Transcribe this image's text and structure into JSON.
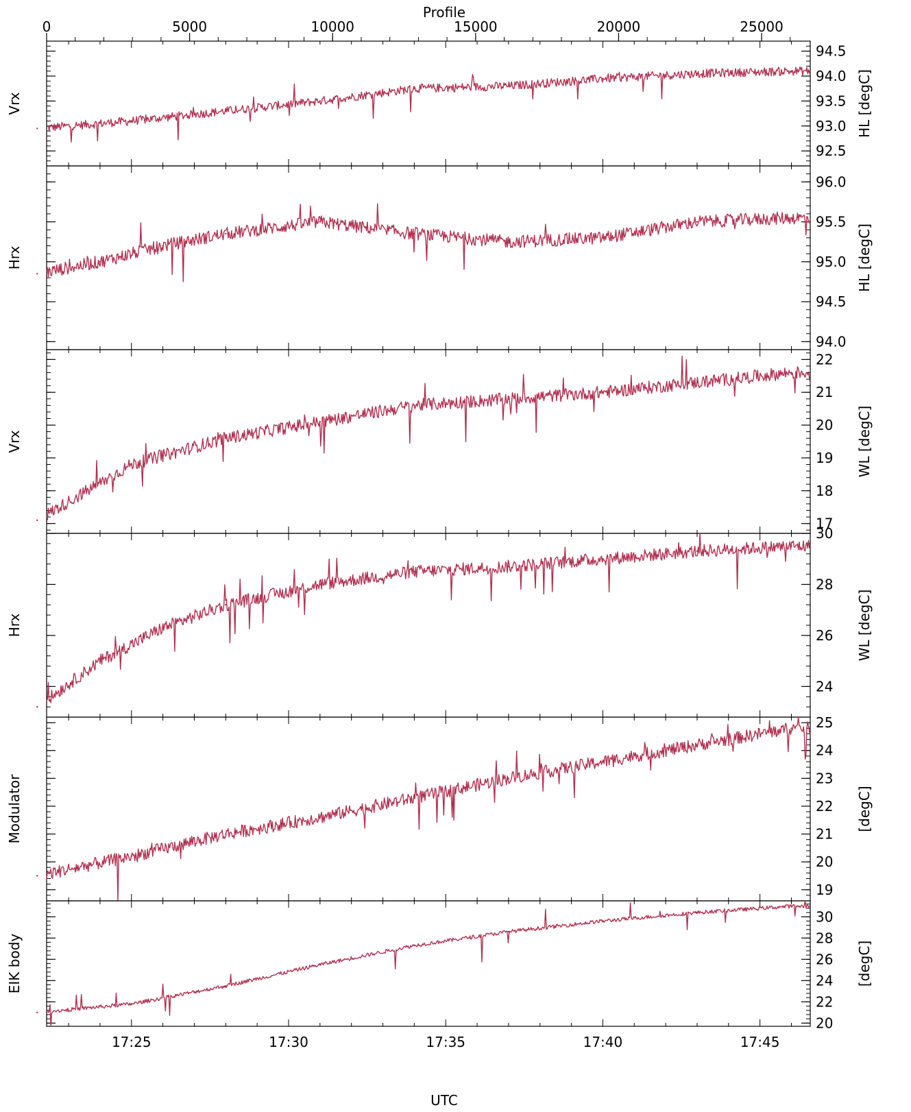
{
  "figure": {
    "top_axis_title": "Profile",
    "bottom_axis_title": "UTC",
    "line_color": "#B03050",
    "top_ticks": [
      "0",
      "5000",
      "10000",
      "15000",
      "20000",
      "25000"
    ],
    "top_range": [
      0,
      26700
    ],
    "bottom_ticks": [
      "17:25",
      "17:30",
      "17:35",
      "17:40",
      "17:45"
    ],
    "time_range_minutes": [
      1042.3,
      1066.6
    ]
  },
  "chart_data": [
    {
      "type": "line",
      "left_label": "Vrx",
      "right_label": "HL  [degC]",
      "ylim": [
        92.2,
        94.7
      ],
      "yticks": [
        "92.5",
        "93.0",
        "93.5",
        "94.0",
        "94.5"
      ],
      "series": [
        {
          "x": [
            "17:22",
            "17:25",
            "17:28",
            "17:31",
            "17:34",
            "17:37",
            "17:40",
            "17:43",
            "17:46"
          ],
          "values": [
            92.95,
            93.1,
            93.3,
            93.5,
            93.75,
            93.8,
            93.95,
            94.05,
            94.1
          ]
        }
      ]
    },
    {
      "type": "line",
      "left_label": "Hrx",
      "right_label": "HL  [degC]",
      "ylim": [
        93.9,
        96.2
      ],
      "yticks": [
        "94.0",
        "94.5",
        "95.0",
        "95.5",
        "96.0"
      ],
      "series": [
        {
          "x": [
            "17:22",
            "17:24",
            "17:26",
            "17:28",
            "17:31",
            "17:34",
            "17:37",
            "17:40",
            "17:43",
            "17:46"
          ],
          "values": [
            94.85,
            95.0,
            95.2,
            95.35,
            95.5,
            95.35,
            95.25,
            95.3,
            95.5,
            95.55
          ]
        }
      ]
    },
    {
      "type": "line",
      "left_label": "Vrx",
      "right_label": "WL  [degC]",
      "ylim": [
        16.7,
        22.3
      ],
      "yticks": [
        "17",
        "18",
        "19",
        "20",
        "21",
        "22"
      ],
      "series": [
        {
          "x": [
            "17:22",
            "17:25",
            "17:28",
            "17:31",
            "17:34",
            "17:37",
            "17:40",
            "17:43",
            "17:46"
          ],
          "values": [
            17.1,
            18.8,
            19.6,
            20.1,
            20.6,
            20.8,
            21.0,
            21.3,
            21.6
          ]
        }
      ]
    },
    {
      "type": "line",
      "left_label": "Hrx",
      "right_label": "WL  [degC]",
      "ylim": [
        22.8,
        30.0
      ],
      "yticks": [
        "24",
        "26",
        "28",
        "30"
      ],
      "series": [
        {
          "x": [
            "17:22",
            "17:24",
            "17:26",
            "17:28",
            "17:31",
            "17:34",
            "17:37",
            "17:40",
            "17:43",
            "17:46"
          ],
          "values": [
            23.2,
            25.0,
            26.3,
            27.2,
            28.0,
            28.5,
            28.7,
            29.0,
            29.3,
            29.5
          ]
        }
      ]
    },
    {
      "type": "line",
      "left_label": "Modulator",
      "right_label": "[degC]",
      "ylim": [
        18.6,
        25.2
      ],
      "yticks": [
        "19",
        "20",
        "21",
        "22",
        "23",
        "24",
        "25"
      ],
      "series": [
        {
          "x": [
            "17:22",
            "17:25",
            "17:28",
            "17:31",
            "17:34",
            "17:37",
            "17:40",
            "17:43",
            "17:46"
          ],
          "values": [
            19.5,
            20.2,
            21.0,
            21.6,
            22.3,
            23.0,
            23.6,
            24.2,
            24.8
          ]
        }
      ]
    },
    {
      "type": "line",
      "left_label": "EIK body",
      "right_label": "[degC]",
      "ylim": [
        19.7,
        31.5
      ],
      "yticks": [
        "20",
        "22",
        "24",
        "26",
        "28",
        "30"
      ],
      "series": [
        {
          "x": [
            "17:22",
            "17:25",
            "17:28",
            "17:31",
            "17:34",
            "17:37",
            "17:40",
            "17:43",
            "17:46"
          ],
          "values": [
            21.0,
            21.8,
            23.5,
            25.5,
            27.3,
            28.6,
            29.6,
            30.4,
            31.0
          ]
        }
      ]
    }
  ]
}
